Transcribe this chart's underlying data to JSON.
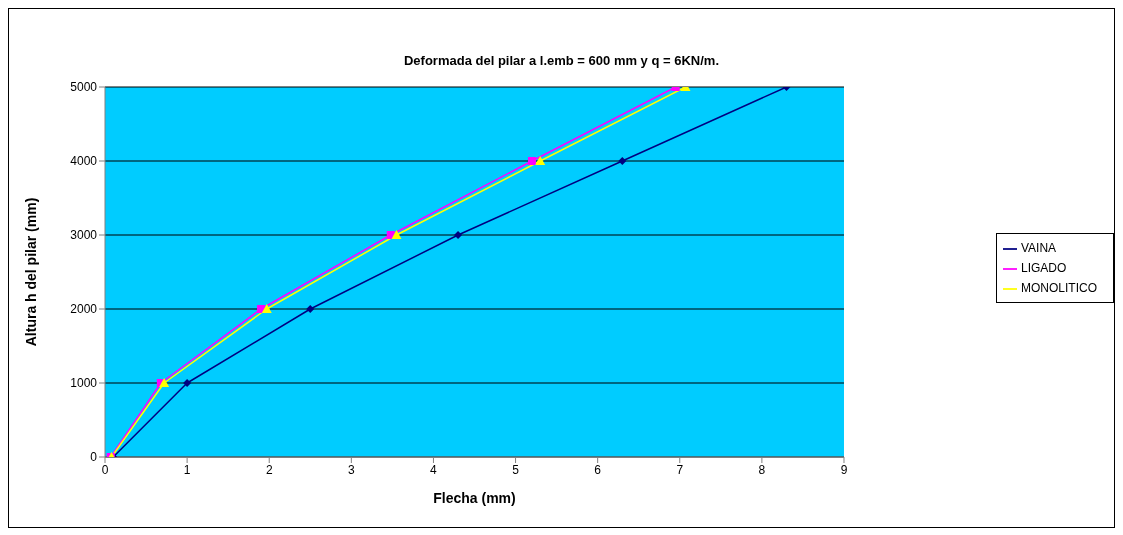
{
  "chart_data": {
    "type": "line",
    "title": "Deformada del pilar a l.emb = 600 mm y q = 6KN/m.",
    "xlabel": "Flecha (mm)",
    "ylabel": "Altura h del pilar (mm)",
    "xlim": [
      0,
      9
    ],
    "xticks": [
      0,
      1,
      2,
      3,
      4,
      5,
      6,
      7,
      8,
      9
    ],
    "ylim": [
      0,
      5000
    ],
    "yticks": [
      0,
      1000,
      2000,
      3000,
      4000,
      5000
    ],
    "grid": "y",
    "legend": "right",
    "series": [
      {
        "name": "VAINA",
        "color": "#000080",
        "marker": "diamond",
        "x": [
          0.1,
          1.0,
          2.5,
          4.3,
          6.3,
          8.3
        ],
        "values": [
          0,
          1000,
          2000,
          3000,
          4000,
          5000
        ]
      },
      {
        "name": "LIGADO",
        "color": "#ff00ff",
        "marker": "square",
        "x": [
          0.07,
          0.68,
          1.9,
          3.48,
          5.2,
          6.95
        ],
        "values": [
          0,
          1000,
          2000,
          3000,
          4000,
          5000
        ]
      },
      {
        "name": "MONOLITICO",
        "color": "#ffff00",
        "marker": "triangle",
        "x": [
          0.08,
          0.72,
          1.97,
          3.55,
          5.3,
          7.07
        ],
        "values": [
          0,
          1000,
          2000,
          3000,
          4000,
          5000
        ]
      }
    ]
  }
}
